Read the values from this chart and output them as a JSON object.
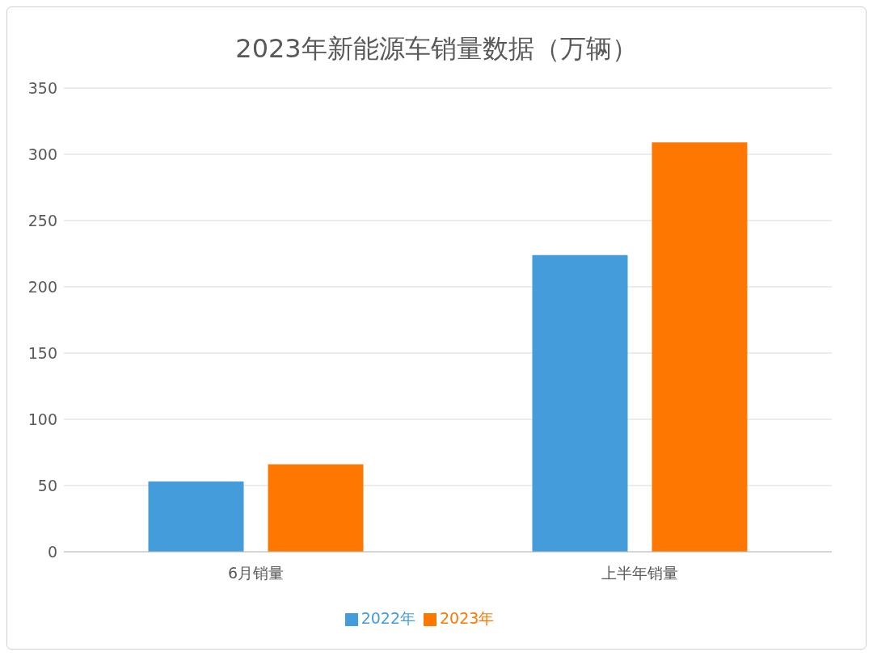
{
  "chart_data": {
    "type": "bar",
    "title": "2023年新能源车销量数据（万辆）",
    "categories": [
      "6月销量",
      "上半年销量"
    ],
    "series": [
      {
        "name": "2022年",
        "color": "#449cdb",
        "values": [
          53,
          224
        ]
      },
      {
        "name": "2023年",
        "color": "#fe7700",
        "values": [
          66,
          309
        ]
      }
    ],
    "ylim": [
      0,
      350
    ],
    "yticks": [
      0,
      50,
      100,
      150,
      200,
      250,
      300,
      350
    ],
    "grid": "y",
    "legend": "bottom"
  }
}
